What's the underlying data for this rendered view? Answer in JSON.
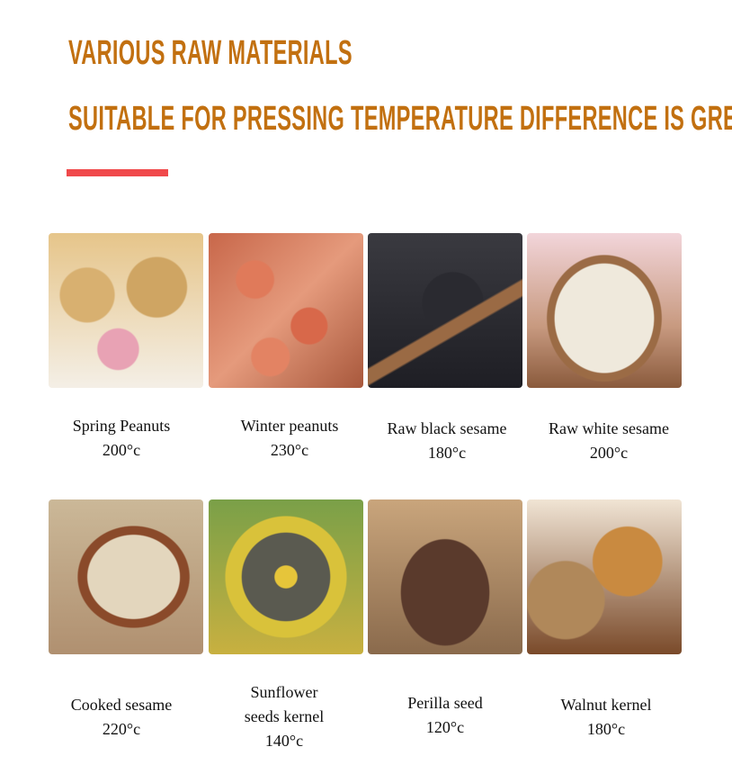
{
  "header": {
    "title": "VARIOUS RAW MATERIALS",
    "subtitle": "SUITABLE FOR PRESSING TEMPERATURE DIFFERENCE IS GREAT",
    "accent_color": "#c27010",
    "divider_color": "#f0494b"
  },
  "materials": [
    {
      "name": "Spring Peanuts",
      "temp": "200°c",
      "image": "peanuts-in-shell-photo"
    },
    {
      "name": "Winter peanuts",
      "temp": "230°c",
      "image": "red-skin-peanuts-photo"
    },
    {
      "name": "Raw black sesame",
      "temp": "180°c",
      "image": "black-sesame-spoon-photo"
    },
    {
      "name": "Raw white sesame",
      "temp": "200°c",
      "image": "white-sesame-bowl-photo"
    },
    {
      "name": "Cooked sesame",
      "temp": "220°c",
      "image": "cooked-sesame-spoon-photo"
    },
    {
      "name_line1": "Sunflower",
      "name_line2": "seeds kernel",
      "temp": "140°c",
      "image": "sunflower-head-photo"
    },
    {
      "name": "Perilla seed",
      "temp": "120°c",
      "image": "perilla-seed-sack-photo"
    },
    {
      "name": "Walnut kernel",
      "temp": "180°c",
      "image": "walnut-kernel-photo"
    }
  ]
}
